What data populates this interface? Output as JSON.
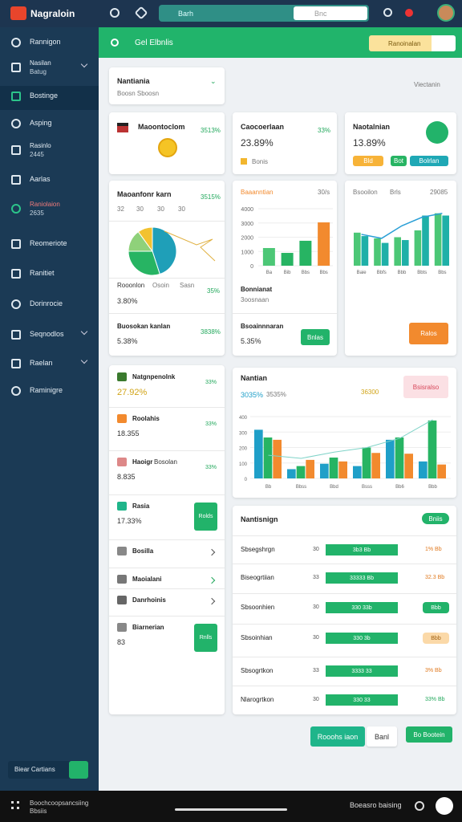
{
  "topbar": {
    "brand": "Nagraloin",
    "search": "Barh",
    "search_box": "Bnc"
  },
  "sidebar": {
    "items": [
      {
        "label": "Rannigon"
      },
      {
        "label": "Nasilan",
        "sub": "Batug"
      },
      {
        "label": "Bostinge"
      },
      {
        "label": "Asping"
      },
      {
        "label": "Rasinlo",
        "sub": "2445"
      },
      {
        "label": "Aarlas"
      },
      {
        "label": "Raniolaion",
        "sub": "2635"
      },
      {
        "label": "Reomeriote"
      },
      {
        "label": "Ranitiet"
      },
      {
        "label": "Dorinrocie"
      },
      {
        "label": "Seqnodlos"
      },
      {
        "label": "Raelan"
      },
      {
        "label": "Raminigre"
      }
    ],
    "footer_button": "Biear Cartians"
  },
  "header": {
    "title": "Gel Elbnlis",
    "button": "Ranoinalan"
  },
  "filter": {
    "title": "Nantiania",
    "subtitle": "Boosn Sboosn",
    "right_label": "Viectanin"
  },
  "stats": [
    {
      "title": "Maoontoclom",
      "change": "3513%"
    },
    {
      "title": "Caocoerlaan",
      "value": "23.89%",
      "note": "Bonis",
      "change": "33%"
    },
    {
      "title": "Naotalnian",
      "value": "13.89%",
      "tags": [
        "Bld",
        "Bot",
        "Bolrlan"
      ]
    }
  ],
  "pie_card": {
    "title": "Maoanfonr karn",
    "change": "3515%",
    "legend": [
      "32",
      "30",
      "30",
      "30"
    ],
    "chart": {
      "type": "pie",
      "values": [
        45,
        30,
        15,
        10
      ],
      "colors": [
        "#1f9fb8",
        "#27b463",
        "#8fd17a",
        "#f2c230"
      ]
    },
    "row1_labels": [
      "Rooonlon",
      "Osoin",
      "Sasn"
    ],
    "row1_change": "35%",
    "row1_value": "3.80%",
    "row2_title": "Buosokan kanlan",
    "row2_change": "3838%",
    "row2_value": "5.38%"
  },
  "bar_card": {
    "title": "Baaanntian",
    "change": "30/s",
    "note_title": "Bonnianat",
    "note_sub": "3oosnaan",
    "bottom_title": "Bsoainnnaran",
    "bottom_value": "5.35%",
    "button": "Bnlas",
    "chart": {
      "type": "bar",
      "categories": [
        "Ba",
        "Bib",
        "Bbs",
        "Bbs"
      ],
      "values": [
        1240,
        900,
        1750,
        3040
      ],
      "colors": [
        "#4cc776",
        "#27b463",
        "#27b463",
        "#f28a2e"
      ],
      "ylim": [
        0,
        4000
      ],
      "yticks": [
        0,
        1000,
        2000,
        3000,
        4000
      ]
    }
  },
  "combo_card": {
    "title": "Bsooilon",
    "title2": "Brls",
    "value": "29085",
    "button": "Ralos",
    "chart": {
      "type": "bar",
      "categories": [
        "Baie",
        "Bbfs",
        "Bbb",
        "Bbts",
        "Bbs"
      ],
      "ylim": [
        0,
        100
      ],
      "series": [
        {
          "color": "#4cc776",
          "values": [
            58,
            48,
            50,
            62,
            92
          ]
        },
        {
          "color": "#1fb0a8",
          "values": [
            52,
            40,
            45,
            88,
            88
          ]
        }
      ],
      "line": {
        "color": "#2a9fd6",
        "values": [
          55,
          48,
          70,
          85,
          92
        ]
      }
    }
  },
  "list": [
    {
      "title": "Natgnpenolnk",
      "value": "27.92%",
      "change": "33%"
    },
    {
      "title": "Roolahis",
      "value": "18.355",
      "change": "33%"
    },
    {
      "title": "Haoigr",
      "title2": "Bosolan",
      "value": "8.835",
      "change": "33%"
    },
    {
      "title": "Rasia",
      "value": "17.33%",
      "button": "Rolds"
    },
    {
      "title": "Bosilla"
    },
    {
      "title": "Maoialani"
    },
    {
      "title": "Danrhoinis"
    },
    {
      "title": "Biarnerian",
      "value": "83",
      "button": "Rnlls"
    }
  ],
  "group_card": {
    "title": "Nantian",
    "sub1": "3035%",
    "sub2": "3535%",
    "value": "36300",
    "badge": "Bsisralso",
    "chart": {
      "type": "bar",
      "categories": [
        "Bb",
        "Bbss",
        "Bbd",
        "Bsss",
        "Bb6",
        "Bbb"
      ],
      "ylim": [
        0,
        400
      ],
      "yticks": [
        0,
        100,
        200,
        300,
        400
      ],
      "series": [
        {
          "color": "#1f9fc8",
          "values": [
            315,
            60,
            95,
            80,
            250,
            110
          ]
        },
        {
          "color": "#27b463",
          "values": [
            265,
            80,
            135,
            200,
            265,
            375
          ]
        },
        {
          "color": "#f28a2e",
          "values": [
            250,
            120,
            110,
            165,
            160,
            90
          ]
        }
      ],
      "trend": {
        "color": "#7fd3c8",
        "values": [
          150,
          130,
          170,
          200,
          260,
          380
        ]
      }
    }
  },
  "table": {
    "title": "Nantisnign",
    "badge": "Bniis",
    "right_styles": [
      "orange",
      "orange",
      "pill-green",
      "pill-peach",
      "orange",
      "green"
    ],
    "rows": [
      [
        "Sbsegshrgn",
        "30",
        "3b3 Bb",
        "1% Bb"
      ],
      [
        "Biseogrtiian",
        "33",
        "33333 Bb",
        "32.3 Bb"
      ],
      [
        "Sbsoonhien",
        "30",
        "330 33b",
        "Bbb"
      ],
      [
        "Sbsoinhian",
        "30",
        "330 3b",
        "Bbb"
      ],
      [
        "Sbsogrtkon",
        "33",
        "3333 33",
        "3% Bb"
      ],
      [
        "Nlarogrtkon",
        "30",
        "330 33",
        "33% Bb"
      ]
    ]
  },
  "actions": [
    "Rooohs iaon",
    "Banl",
    "Bo Bootein"
  ],
  "bottombar": {
    "left": "Boochcoopsancsiing",
    "left2": "Bbsiis",
    "right": "Boeasro baising"
  }
}
